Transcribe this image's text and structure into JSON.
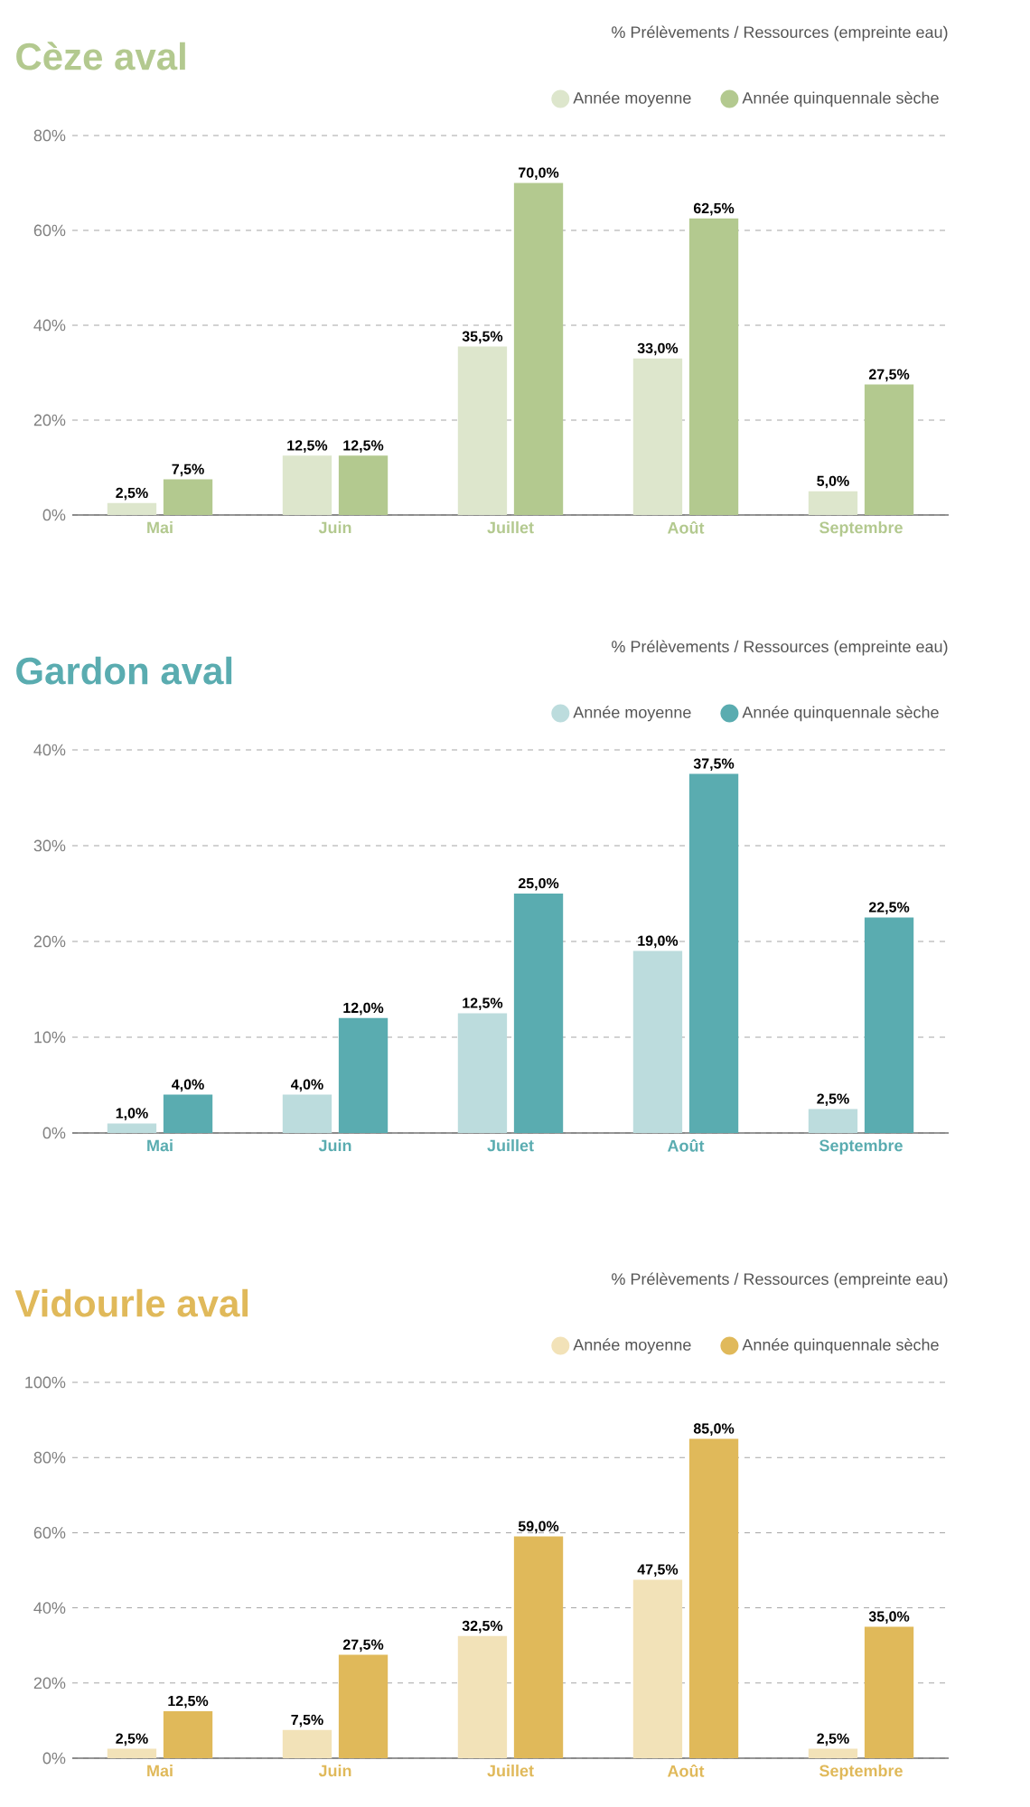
{
  "chart_data": [
    {
      "type": "bar",
      "title": "Cèze aval",
      "subtitle": "% Prélèvements / Ressources (empreinte eau)",
      "categories": [
        "Mai",
        "Juin",
        "Juillet",
        "Août",
        "Septembre"
      ],
      "series": [
        {
          "name": "Année moyenne",
          "color": "#dde6cc",
          "values": [
            2.5,
            12.5,
            35.5,
            33.0,
            5.0
          ],
          "value_labels": [
            "2,5%",
            "12,5%",
            "35,5%",
            "33,0%",
            "5,0%"
          ]
        },
        {
          "name": "Année quinquennale sèche",
          "color": "#b3c98f",
          "values": [
            7.5,
            12.5,
            70.0,
            62.5,
            27.5
          ],
          "value_labels": [
            "7,5%",
            "12,5%",
            "70,0%",
            "62,5%",
            "27,5%"
          ]
        }
      ],
      "ylim": [
        0,
        80
      ],
      "yticks": [
        {
          "value": 0,
          "label": "0%"
        },
        {
          "value": 20,
          "label": "20%"
        },
        {
          "value": 40,
          "label": "40%"
        },
        {
          "value": 60,
          "label": "60%"
        },
        {
          "value": 80,
          "label": "80%"
        }
      ],
      "grid": "y",
      "legend": "top right"
    },
    {
      "type": "bar",
      "title": "Gardon aval",
      "subtitle": "% Prélèvements / Ressources (empreinte eau)",
      "categories": [
        "Mai",
        "Juin",
        "Juillet",
        "Août",
        "Septembre"
      ],
      "series": [
        {
          "name": "Année moyenne",
          "color": "#bcdcdd",
          "values": [
            1.0,
            4.0,
            12.5,
            19.0,
            2.5
          ],
          "value_labels": [
            "1,0%",
            "4,0%",
            "12,5%",
            "19,0%",
            "2,5%"
          ]
        },
        {
          "name": "Année quinquennale sèche",
          "color": "#5aacb0",
          "values": [
            4.0,
            12.0,
            25.0,
            37.5,
            22.5
          ],
          "value_labels": [
            "4,0%",
            "12,0%",
            "25,0%",
            "37,5%",
            "22,5%"
          ]
        }
      ],
      "ylim": [
        0,
        40
      ],
      "yticks": [
        {
          "value": 0,
          "label": "0%"
        },
        {
          "value": 10,
          "label": "10%"
        },
        {
          "value": 20,
          "label": "20%"
        },
        {
          "value": 30,
          "label": "30%"
        },
        {
          "value": 40,
          "label": "40%"
        }
      ],
      "grid": "y",
      "legend": "top right"
    },
    {
      "type": "bar",
      "title": "Vidourle aval",
      "subtitle": "% Prélèvements / Ressources (empreinte eau)",
      "categories": [
        "Mai",
        "Juin",
        "Juillet",
        "Août",
        "Septembre"
      ],
      "series": [
        {
          "name": "Année moyenne",
          "color": "#f2e2b8",
          "values": [
            2.5,
            7.5,
            32.5,
            47.5,
            2.5
          ],
          "value_labels": [
            "2,5%",
            "7,5%",
            "32,5%",
            "47,5%",
            "2,5%"
          ]
        },
        {
          "name": "Année quinquennale sèche",
          "color": "#e0b95a",
          "values": [
            12.5,
            27.5,
            59.0,
            85.0,
            35.0
          ],
          "value_labels": [
            "12,5%",
            "27,5%",
            "59,0%",
            "85,0%",
            "35,0%"
          ]
        }
      ],
      "ylim": [
        0,
        100
      ],
      "yticks": [
        {
          "value": 0,
          "label": "0%"
        },
        {
          "value": 20,
          "label": "20%"
        },
        {
          "value": 40,
          "label": "40%"
        },
        {
          "value": 60,
          "label": "60%"
        },
        {
          "value": 80,
          "label": "80%"
        },
        {
          "value": 100,
          "label": "100%"
        }
      ],
      "grid": "y",
      "legend": "top right"
    }
  ]
}
